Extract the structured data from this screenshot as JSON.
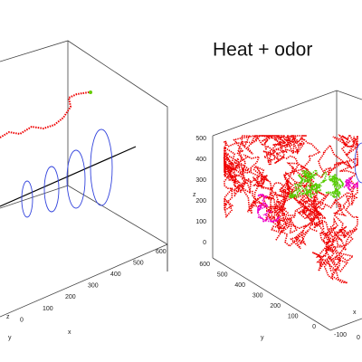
{
  "left_panel": {
    "x_ticks": [
      "600",
      "500",
      "400",
      "300",
      "200",
      "100",
      "0"
    ],
    "x_label": "x",
    "z_label": "z",
    "y_label": "y"
  },
  "right_panel": {
    "title": "Heat + odor",
    "z_ticks": [
      "500",
      "400",
      "300",
      "200",
      "100",
      "0"
    ],
    "y_ticks": [
      "600",
      "500",
      "400",
      "300",
      "200",
      "100",
      "0"
    ],
    "x_ticks": [
      "-100",
      "0"
    ],
    "z_label": "z",
    "y_label": "y",
    "x_label": "x"
  }
}
